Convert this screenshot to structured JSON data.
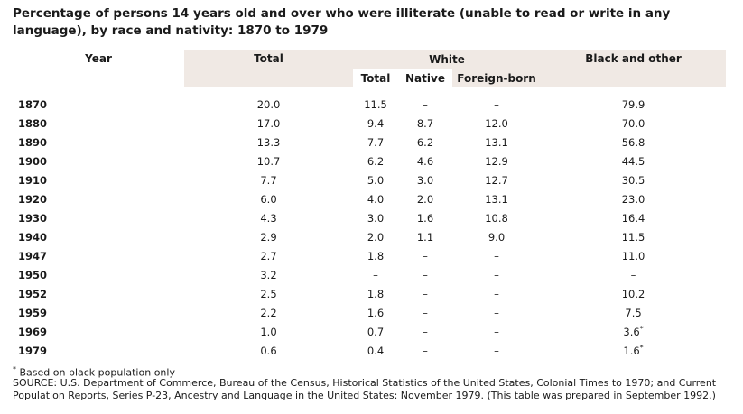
{
  "title": "Percentage of persons 14 years old and over who were illiterate (unable to read or write in any language), by race and nativity: 1870 to 1979",
  "headers": {
    "year": "Year",
    "total": "Total",
    "white": "White",
    "white_total": "Total",
    "white_native": "Native",
    "white_foreign": "Foreign-born",
    "black": "Black and other"
  },
  "rows": [
    {
      "year": "1870",
      "total": "20.0",
      "white_total": "11.5",
      "native": "–",
      "foreign": "–",
      "black": "79.9"
    },
    {
      "year": "1880",
      "total": "17.0",
      "white_total": "9.4",
      "native": "8.7",
      "foreign": "12.0",
      "black": "70.0"
    },
    {
      "year": "1890",
      "total": "13.3",
      "white_total": "7.7",
      "native": "6.2",
      "foreign": "13.1",
      "black": "56.8"
    },
    {
      "year": "1900",
      "total": "10.7",
      "white_total": "6.2",
      "native": "4.6",
      "foreign": "12.9",
      "black": "44.5"
    },
    {
      "year": "1910",
      "total": "7.7",
      "white_total": "5.0",
      "native": "3.0",
      "foreign": "12.7",
      "black": "30.5"
    },
    {
      "year": "1920",
      "total": "6.0",
      "white_total": "4.0",
      "native": "2.0",
      "foreign": "13.1",
      "black": "23.0"
    },
    {
      "year": "1930",
      "total": "4.3",
      "white_total": "3.0",
      "native": "1.6",
      "foreign": "10.8",
      "black": "16.4"
    },
    {
      "year": "1940",
      "total": "2.9",
      "white_total": "2.0",
      "native": "1.1",
      "foreign": "9.0",
      "black": "11.5"
    },
    {
      "year": "1947",
      "total": "2.7",
      "white_total": "1.8",
      "native": "–",
      "foreign": "–",
      "black": "11.0"
    },
    {
      "year": "1950",
      "total": "3.2",
      "white_total": "–",
      "native": "–",
      "foreign": "–",
      "black": "–"
    },
    {
      "year": "1952",
      "total": "2.5",
      "white_total": "1.8",
      "native": "–",
      "foreign": "–",
      "black": "10.2"
    },
    {
      "year": "1959",
      "total": "2.2",
      "white_total": "1.6",
      "native": "–",
      "foreign": "–",
      "black": "7.5"
    },
    {
      "year": "1969",
      "total": "1.0",
      "white_total": "0.7",
      "native": "–",
      "foreign": "–",
      "black": "3.6",
      "black_note": "*"
    },
    {
      "year": "1979",
      "total": "0.6",
      "white_total": "0.4",
      "native": "–",
      "foreign": "–",
      "black": "1.6",
      "black_note": "*"
    }
  ],
  "footnote_mark": "*",
  "footnote": "Based on black population only",
  "source": "SOURCE: U.S. Department of Commerce, Bureau of the Census, Historical Statistics of the United States, Colonial Times to 1970; and Current Population Reports, Series P-23, Ancestry and Language in the United States: November 1979. (This table was prepared in September 1992.)",
  "colors": {
    "header_shade": "#f0e9e4",
    "text": "#1a1a1a"
  }
}
